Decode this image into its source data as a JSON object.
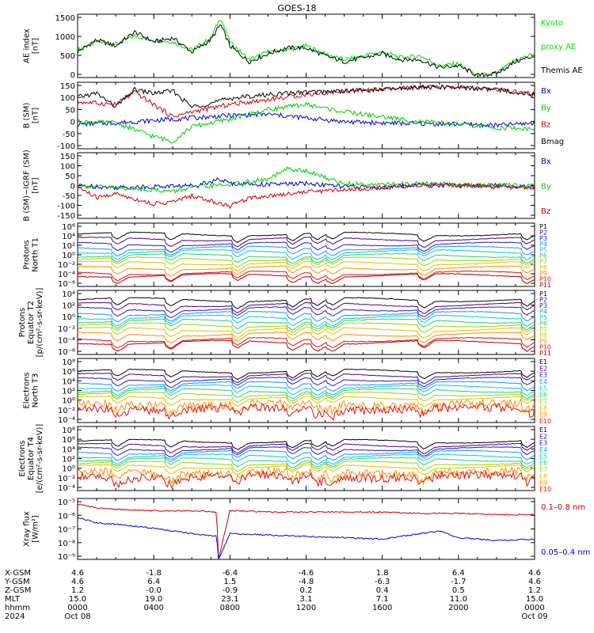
{
  "chart_data": {
    "type": "line",
    "title": "GOES-18",
    "x_ticks": [
      {
        "hhmm": "0000",
        "year": "2024",
        "date": "Oct 08",
        "xgsm": "4.6",
        "ygsm": "4.6",
        "zgsm": "1.2",
        "mlt": "15.0"
      },
      {
        "hhmm": "0400",
        "date": "",
        "xgsm": "-1.8",
        "ygsm": "6.4",
        "zgsm": "-0.0",
        "mlt": "19.0"
      },
      {
        "hhmm": "0800",
        "date": "",
        "xgsm": "-6.4",
        "ygsm": "1.5",
        "zgsm": "-0.9",
        "mlt": "23.1"
      },
      {
        "hhmm": "1200",
        "date": "",
        "xgsm": "-4.6",
        "ygsm": "-4.8",
        "zgsm": "0.2",
        "mlt": "3.1"
      },
      {
        "hhmm": "1600",
        "date": "",
        "xgsm": "1.8",
        "ygsm": "-6.3",
        "zgsm": "0.4",
        "mlt": "7.1"
      },
      {
        "hhmm": "2000",
        "date": "",
        "xgsm": "6.4",
        "ygsm": "-1.7",
        "zgsm": "0.5",
        "mlt": "11.0"
      },
      {
        "hhmm": "0000",
        "date": "Oct 09",
        "xgsm": "4.6",
        "ygsm": "4.6",
        "zgsm": "1.2",
        "mlt": "15.0"
      }
    ],
    "row_labels": [
      "X-GSM",
      "Y-GSM",
      "Z-GSM",
      "MLT",
      "hhmm",
      "2024"
    ],
    "panels": [
      {
        "id": "ae",
        "ylabel": [
          "AE index",
          "[nT]"
        ],
        "yticks": [
          "1500",
          "1000",
          "500",
          "0"
        ],
        "ylim": [
          0,
          1600
        ],
        "legend": [
          {
            "text": "Kyoto",
            "color": "#00dd00"
          },
          {
            "text": "proxy AE",
            "color": "#00dd00"
          },
          {
            "text": "Themis AE",
            "color": "#000000"
          }
        ],
        "series": [
          {
            "name": "Kyoto proxy AE",
            "color": "#00dd00",
            "hours": [
              0,
              1,
              2,
              3,
              4,
              5,
              6,
              7,
              7.5,
              8,
              9,
              10,
              11,
              12,
              13,
              14,
              15,
              16,
              17,
              18,
              19,
              20,
              21,
              22,
              23,
              24
            ],
            "values": [
              700,
              900,
              850,
              1050,
              950,
              900,
              700,
              1000,
              1520,
              900,
              450,
              650,
              700,
              800,
              600,
              450,
              550,
              650,
              500,
              550,
              300,
              350,
              50,
              100,
              450,
              600
            ]
          },
          {
            "name": "Themis AE",
            "color": "#000000",
            "hours": [
              0,
              1,
              2,
              3,
              4,
              5,
              6,
              7,
              7.5,
              8,
              9,
              10,
              11,
              12,
              13,
              14,
              15,
              16,
              17,
              18,
              19,
              20,
              21,
              22,
              23,
              24
            ],
            "values": [
              650,
              950,
              800,
              1150,
              900,
              1000,
              650,
              950,
              1350,
              800,
              400,
              600,
              750,
              750,
              550,
              400,
              500,
              600,
              450,
              450,
              250,
              300,
              50,
              100,
              400,
              550
            ]
          }
        ]
      },
      {
        "id": "bsm",
        "ylabel": [
          "B (SM)",
          "[nT]"
        ],
        "yticks": [
          "150",
          "100",
          "50",
          "0",
          "-50",
          "-100"
        ],
        "ylim": [
          -110,
          160
        ],
        "legend": [
          {
            "text": "Bx",
            "color": "#0000cc"
          },
          {
            "text": "By",
            "color": "#00cc00"
          },
          {
            "text": "Bz",
            "color": "#cc0000"
          },
          {
            "text": "Bmag",
            "color": "#000000"
          }
        ],
        "series": [
          {
            "name": "Bx",
            "color": "#0000cc",
            "hours": [
              0,
              2,
              4,
              6,
              8,
              10,
              12,
              14,
              16,
              18,
              20,
              22,
              24
            ],
            "values": [
              -10,
              -5,
              5,
              15,
              25,
              30,
              15,
              0,
              -5,
              -8,
              -10,
              -15,
              -5
            ]
          },
          {
            "name": "By",
            "color": "#00cc00",
            "hours": [
              0,
              2,
              4,
              5,
              6,
              8,
              10,
              12,
              14,
              16,
              18,
              20,
              22,
              24
            ],
            "values": [
              0,
              -5,
              -60,
              -80,
              -20,
              10,
              50,
              70,
              40,
              20,
              0,
              -10,
              -25,
              -30
            ]
          },
          {
            "name": "Bz",
            "color": "#cc0000",
            "hours": [
              0,
              2,
              3,
              5,
              6,
              8,
              10,
              12,
              14,
              16,
              18,
              20,
              22,
              24
            ],
            "values": [
              80,
              70,
              120,
              20,
              40,
              70,
              90,
              110,
              125,
              130,
              140,
              140,
              130,
              110
            ]
          },
          {
            "name": "Bmag",
            "color": "#000000",
            "hours": [
              0,
              1,
              2,
              3,
              4,
              5,
              6,
              7,
              8,
              10,
              12,
              14,
              16,
              18,
              20,
              22,
              24
            ],
            "values": [
              100,
              115,
              60,
              130,
              115,
              125,
              60,
              75,
              95,
              110,
              120,
              125,
              130,
              140,
              140,
              130,
              110
            ]
          }
        ]
      },
      {
        "id": "bigrf",
        "ylabel": [
          "B (SM)−IGRF (SM)",
          "[nT]"
        ],
        "yticks": [
          "150",
          "100",
          "50",
          "0",
          "-50",
          "-100",
          "-150"
        ],
        "ylim": [
          -160,
          160
        ],
        "legend": [
          {
            "text": "Bx",
            "color": "#0000cc"
          },
          {
            "text": "By",
            "color": "#00cc00"
          },
          {
            "text": "Bz",
            "color": "#cc0000"
          }
        ],
        "series": [
          {
            "name": "Bx",
            "color": "#0000cc",
            "hours": [
              0,
              2,
              4,
              6,
              7.5,
              8,
              10,
              12,
              14,
              16,
              18,
              20,
              22,
              24
            ],
            "values": [
              0,
              -10,
              -5,
              0,
              30,
              10,
              5,
              10,
              -5,
              -10,
              5,
              0,
              0,
              -5
            ]
          },
          {
            "name": "By",
            "color": "#00cc00",
            "hours": [
              0,
              2,
              4,
              5,
              6,
              8,
              10,
              11,
              12,
              13,
              14,
              16,
              18,
              20,
              22,
              24
            ],
            "values": [
              0,
              -10,
              -20,
              -30,
              -10,
              5,
              30,
              80,
              70,
              40,
              10,
              5,
              10,
              5,
              0,
              0
            ]
          },
          {
            "name": "Bz",
            "color": "#cc0000",
            "hours": [
              0,
              1,
              2,
              4,
              5,
              6,
              8,
              9,
              10,
              12,
              14,
              16,
              18,
              20,
              22,
              24
            ],
            "values": [
              -5,
              -60,
              -40,
              -90,
              -80,
              -50,
              -100,
              -60,
              -50,
              -30,
              -20,
              -10,
              0,
              0,
              -5,
              -10
            ]
          }
        ]
      },
      {
        "id": "pn",
        "ylabel": [
          "Protons",
          "North T1"
        ],
        "yticks": [
          "10⁶",
          "10⁴",
          "10²",
          "10⁰",
          "10⁻²",
          "10⁻⁴",
          "10⁻⁶"
        ],
        "ylim_log10": [
          -6.5,
          6.2
        ],
        "channels": [
          "P1",
          "P2",
          "P3",
          "P4",
          "P5",
          "P6",
          "P7",
          "P8",
          "P9",
          "P10",
          "P11"
        ],
        "channel_levels_log10": [
          4,
          3,
          2,
          1.2,
          0.5,
          -0.3,
          -1,
          -1.8,
          -2.8,
          -3.8,
          -4.3
        ]
      },
      {
        "id": "pe",
        "ylabel": [
          "Protons",
          "Equator T2",
          "[p/(cm²-s-sr-keV)]"
        ],
        "yticks": [
          "10⁴",
          "10²",
          "10⁰",
          "10⁻²",
          "10⁻⁴",
          "10⁻⁶"
        ],
        "ylim_log10": [
          -6.5,
          5.2
        ],
        "channels": [
          "P1",
          "P2",
          "P3",
          "P4",
          "P5",
          "P6",
          "P7",
          "P8",
          "P9",
          "P10",
          "P11"
        ],
        "channel_levels_log10": [
          3.5,
          2.6,
          1.8,
          1,
          0.3,
          -0.4,
          -1.1,
          -1.9,
          -2.8,
          -3.8,
          -4.3
        ]
      },
      {
        "id": "en",
        "ylabel": [
          "Electrons",
          "North T3"
        ],
        "yticks": [
          "10⁸",
          "10⁶",
          "10⁴",
          "10²",
          "10⁰",
          "10⁻²",
          "10⁻⁴"
        ],
        "ylim_log10": [
          -4.3,
          8.3
        ],
        "channels": [
          "E1",
          "E2",
          "E3",
          "E4",
          "E5",
          "E6",
          "E7",
          "E8",
          "E9",
          "E10"
        ],
        "channel_levels_log10": [
          5.8,
          5,
          4.2,
          3.4,
          2.7,
          2,
          1.3,
          0.5,
          -0.8,
          -1.6
        ]
      },
      {
        "id": "ee",
        "ylabel": [
          "Electrons",
          "Equator T4",
          "[e/(cm²-s-sr-keV)]"
        ],
        "yticks": [
          "10⁸",
          "10⁶",
          "10⁴",
          "10²",
          "10⁰",
          "10⁻²",
          "10⁻⁴"
        ],
        "ylim_log10": [
          -4.3,
          8.3
        ],
        "channels": [
          "E1",
          "E2",
          "E3",
          "E4",
          "E5",
          "E6",
          "E7",
          "E8",
          "E9",
          "E10"
        ],
        "channel_levels_log10": [
          5.4,
          4.6,
          3.9,
          3.2,
          2.5,
          1.8,
          1.1,
          0.4,
          -0.8,
          -1.6
        ]
      },
      {
        "id": "xray",
        "ylabel": [
          "Xray flux",
          "[W/m²]"
        ],
        "yticks": [
          "10⁻⁵",
          "10⁻⁶",
          "10⁻⁷",
          "10⁻⁸",
          "10⁻⁹"
        ],
        "ylim_log10": [
          -9.3,
          -4.8
        ],
        "legend": [
          {
            "text": "0.1–0.8 nm",
            "color": "#cc0000"
          },
          {
            "text": "0.05–0.4 nm",
            "color": "#0000cc"
          }
        ],
        "series": [
          {
            "name": "0.1–0.8 nm",
            "color": "#cc0000",
            "hours": [
              0,
              1,
              2,
              4,
              6,
              7.3,
              7.4,
              8,
              10,
              12,
              14,
              16,
              18,
              20,
              22,
              24
            ],
            "log10": [
              -5.2,
              -5.5,
              -5.6,
              -5.7,
              -5.7,
              -5.8,
              -9.3,
              -5.7,
              -5.8,
              -5.8,
              -5.8,
              -5.8,
              -5.9,
              -5.9,
              -6,
              -6
            ]
          },
          {
            "name": "0.05–0.4 nm",
            "color": "#0000cc",
            "hours": [
              0,
              1,
              2,
              4,
              6,
              7.3,
              7.4,
              8,
              10,
              12,
              14,
              16,
              18,
              19,
              20,
              22,
              24
            ],
            "log10": [
              -6.2,
              -6.6,
              -6.7,
              -7,
              -7.4,
              -7.6,
              -9.3,
              -7.4,
              -7.5,
              -7.6,
              -7.7,
              -7.8,
              -7.4,
              -7.2,
              -7.7,
              -7.9,
              -7.8
            ]
          }
        ]
      }
    ]
  },
  "colors": {
    "channel_palette": [
      "#000000",
      "#4b0082",
      "#1f1fbf",
      "#1e90ff",
      "#00cccc",
      "#2ecc71",
      "#a0d000",
      "#e0c000",
      "#ff8c00",
      "#dd1111",
      "#aa0000"
    ]
  }
}
